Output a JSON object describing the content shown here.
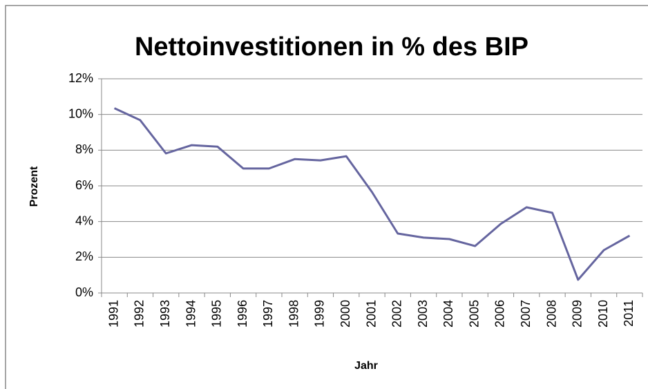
{
  "chart_data": {
    "type": "line",
    "title": "Nettoinvestitionen in % des BIP",
    "x_label": "Jahr",
    "y_label": "Prozent",
    "categories": [
      "1991",
      "1992",
      "1993",
      "1994",
      "1995",
      "1996",
      "1997",
      "1998",
      "1999",
      "2000",
      "2001",
      "2002",
      "2003",
      "2004",
      "2005",
      "2006",
      "2007",
      "2008",
      "2009",
      "2010",
      "2011"
    ],
    "series": [
      {
        "name": "Nettoinvestitionen",
        "color": "#65659f",
        "values": [
          10.35,
          9.68,
          7.82,
          8.28,
          8.2,
          6.97,
          6.97,
          7.5,
          7.43,
          7.66,
          5.65,
          3.33,
          3.1,
          3.02,
          2.63,
          3.87,
          4.8,
          4.49,
          0.74,
          2.4,
          3.21
        ]
      }
    ],
    "ylim": [
      0,
      12
    ],
    "yticks": [
      {
        "value": 0,
        "label": "0%"
      },
      {
        "value": 2,
        "label": "2%"
      },
      {
        "value": 4,
        "label": "4%"
      },
      {
        "value": 6,
        "label": "6%"
      },
      {
        "value": 8,
        "label": "8%"
      },
      {
        "value": 10,
        "label": "10%"
      },
      {
        "value": 12,
        "label": "12%"
      }
    ],
    "grid": true
  }
}
